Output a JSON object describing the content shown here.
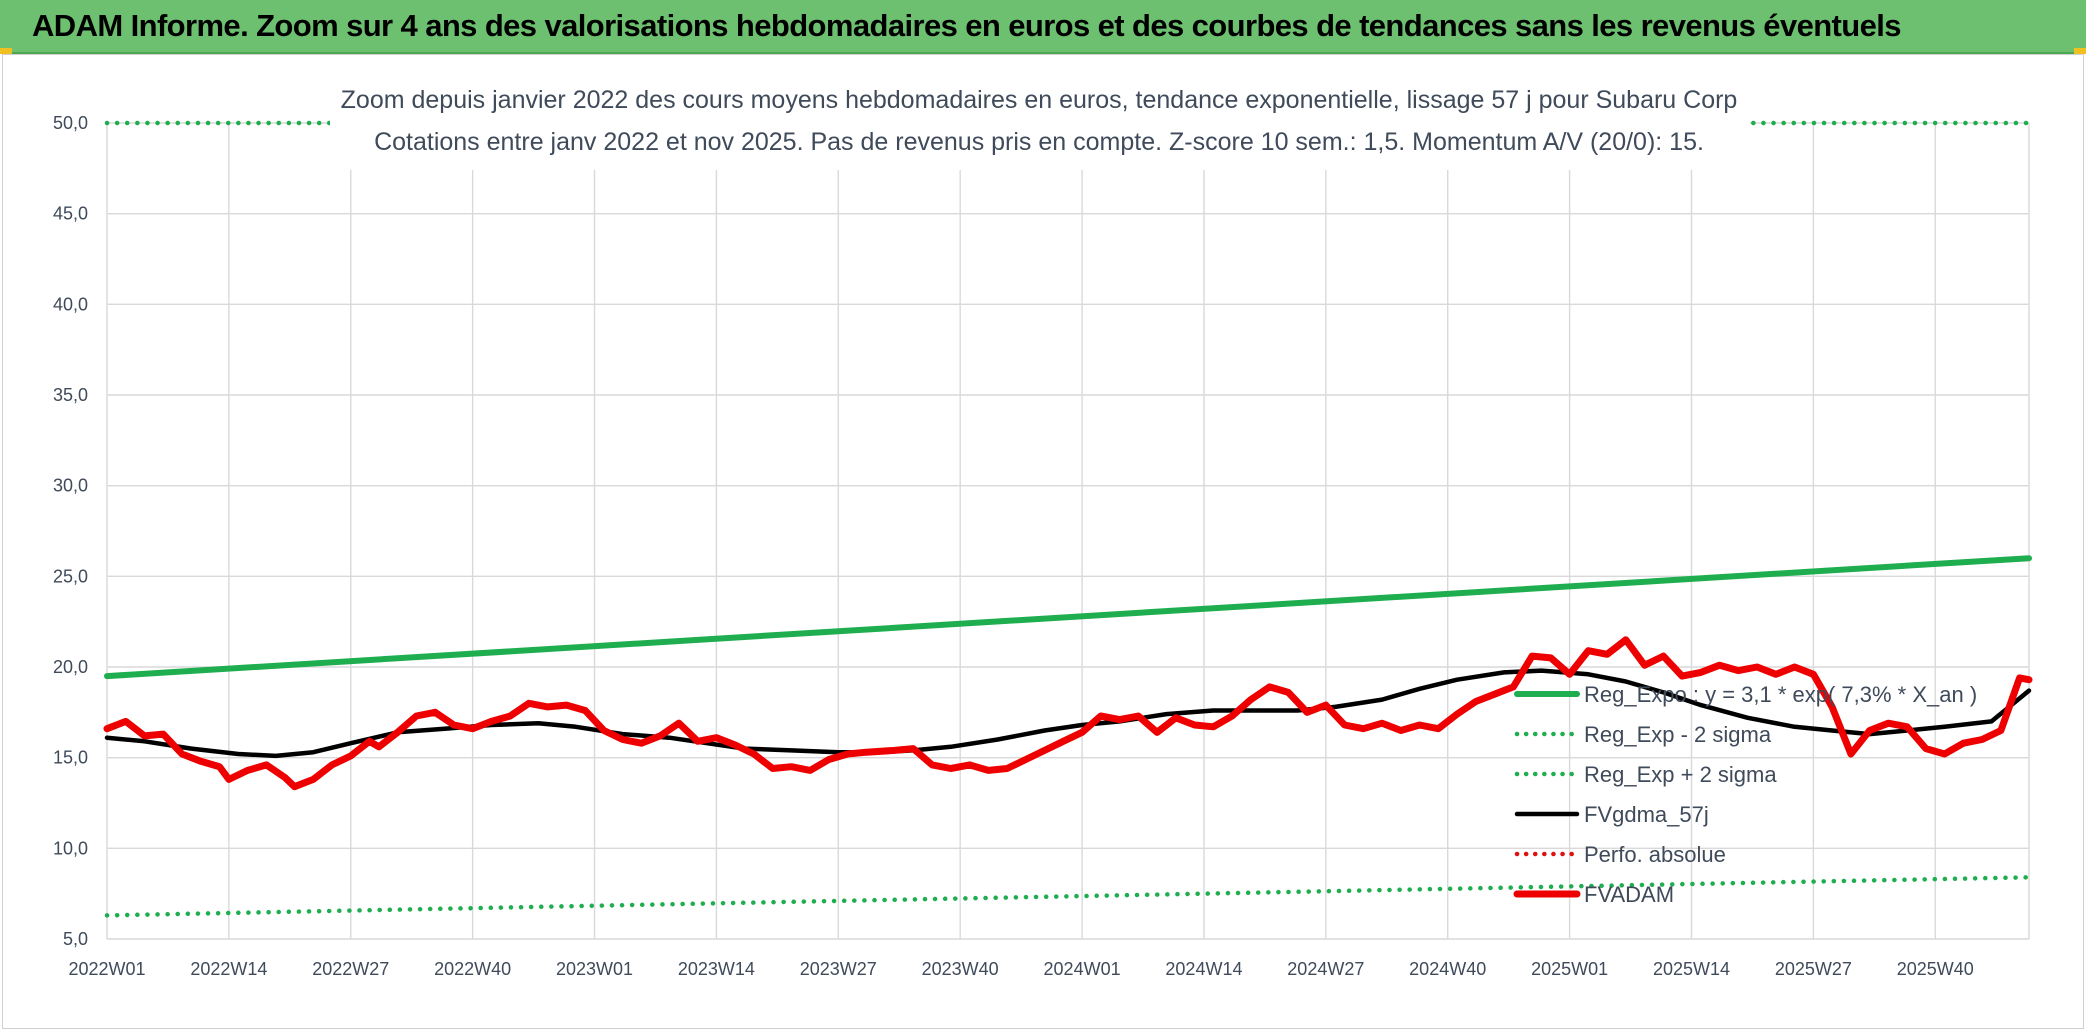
{
  "header": {
    "title": "ADAM Informe. Zoom sur 4 ans des valorisations hebdomadaires en euros et des courbes de tendances sans les revenus éventuels"
  },
  "colors": {
    "header_bg": "#6cc070",
    "regression": "#1fae4f",
    "fvadam": "#ee0000",
    "fvgdma": "#000000",
    "perfo": "#e01010",
    "grid": "#d9d9d9",
    "text": "#3f4a5a"
  },
  "chart_data": {
    "type": "line",
    "title": "Zoom depuis janvier 2022 des cours moyens hebdomadaires en euros, tendance exponentielle, lissage 57 j pour Subaru Corp",
    "subtitle": "Cotations entre janv 2022 et nov 2025. Pas de revenus pris en compte. Z-score 10 sem.: 1,5. Momentum A/V (20/0): 15.",
    "xlabel": "",
    "ylabel": "",
    "ylim": [
      5,
      50
    ],
    "y_ticks": [
      "5,0",
      "10,0",
      "15,0",
      "20,0",
      "25,0",
      "30,0",
      "35,0",
      "40,0",
      "45,0",
      "50,0"
    ],
    "x_ticks": [
      "2022W01",
      "2022W14",
      "2022W27",
      "2022W40",
      "2023W01",
      "2023W14",
      "2023W27",
      "2023W40",
      "2024W01",
      "2024W14",
      "2024W27",
      "2024W40",
      "2025W01",
      "2025W14",
      "2025W27",
      "2025W40"
    ],
    "week_count": 206,
    "grid": true,
    "legend_position": "right",
    "series": [
      {
        "name": "Reg_Expo : y = 3,1 * exp( 7,3% *  X_an )",
        "style": "solid",
        "color": "#1fae4f",
        "points": [
          [
            0,
            19.5
          ],
          [
            205,
            26.0
          ]
        ]
      },
      {
        "name": "Reg_Exp - 2 sigma",
        "style": "dotted",
        "color": "#1fae4f",
        "points": [
          [
            0,
            6.3
          ],
          [
            205,
            8.4
          ]
        ]
      },
      {
        "name": "Reg_Exp + 2 sigma",
        "style": "dotted",
        "color": "#1fae4f",
        "points": [
          [
            0,
            50.0
          ],
          [
            205,
            50.0
          ]
        ]
      },
      {
        "name": "FVgdma_57j",
        "style": "solid",
        "color": "#000000",
        "points": [
          [
            0,
            16.1
          ],
          [
            4,
            15.9
          ],
          [
            9,
            15.5
          ],
          [
            14,
            15.2
          ],
          [
            18,
            15.1
          ],
          [
            22,
            15.3
          ],
          [
            26,
            15.8
          ],
          [
            31,
            16.4
          ],
          [
            36,
            16.6
          ],
          [
            41,
            16.8
          ],
          [
            46,
            16.9
          ],
          [
            50,
            16.7
          ],
          [
            55,
            16.3
          ],
          [
            60,
            16.1
          ],
          [
            64,
            15.8
          ],
          [
            68,
            15.5
          ],
          [
            73,
            15.4
          ],
          [
            78,
            15.3
          ],
          [
            82,
            15.3
          ],
          [
            86,
            15.4
          ],
          [
            90,
            15.6
          ],
          [
            95,
            16.0
          ],
          [
            100,
            16.5
          ],
          [
            104,
            16.8
          ],
          [
            108,
            17.0
          ],
          [
            113,
            17.4
          ],
          [
            118,
            17.6
          ],
          [
            122,
            17.6
          ],
          [
            127,
            17.6
          ],
          [
            131,
            17.8
          ],
          [
            136,
            18.2
          ],
          [
            140,
            18.8
          ],
          [
            144,
            19.3
          ],
          [
            149,
            19.7
          ],
          [
            153,
            19.8
          ],
          [
            158,
            19.6
          ],
          [
            162,
            19.2
          ],
          [
            166,
            18.6
          ],
          [
            170,
            17.9
          ],
          [
            175,
            17.2
          ],
          [
            180,
            16.7
          ],
          [
            184,
            16.5
          ],
          [
            188,
            16.3
          ],
          [
            192,
            16.5
          ],
          [
            196,
            16.7
          ],
          [
            201,
            17.0
          ],
          [
            205,
            18.7
          ]
        ]
      },
      {
        "name": "Perfo. absolue",
        "style": "dotted",
        "color": "#e01010",
        "points": []
      },
      {
        "name": "FVADAM",
        "style": "solid",
        "color": "#ee0000",
        "points": [
          [
            0,
            16.6
          ],
          [
            2,
            17.0
          ],
          [
            4,
            16.2
          ],
          [
            6,
            16.3
          ],
          [
            8,
            15.2
          ],
          [
            10,
            14.8
          ],
          [
            12,
            14.5
          ],
          [
            13,
            13.8
          ],
          [
            15,
            14.3
          ],
          [
            17,
            14.6
          ],
          [
            19,
            13.9
          ],
          [
            20,
            13.4
          ],
          [
            22,
            13.8
          ],
          [
            24,
            14.6
          ],
          [
            26,
            15.1
          ],
          [
            28,
            15.9
          ],
          [
            29,
            15.6
          ],
          [
            31,
            16.4
          ],
          [
            33,
            17.3
          ],
          [
            35,
            17.5
          ],
          [
            37,
            16.8
          ],
          [
            39,
            16.6
          ],
          [
            41,
            17.0
          ],
          [
            43,
            17.3
          ],
          [
            45,
            18.0
          ],
          [
            47,
            17.8
          ],
          [
            49,
            17.9
          ],
          [
            51,
            17.6
          ],
          [
            53,
            16.5
          ],
          [
            55,
            16.0
          ],
          [
            57,
            15.8
          ],
          [
            59,
            16.2
          ],
          [
            61,
            16.9
          ],
          [
            63,
            15.9
          ],
          [
            65,
            16.1
          ],
          [
            67,
            15.7
          ],
          [
            69,
            15.2
          ],
          [
            71,
            14.4
          ],
          [
            73,
            14.5
          ],
          [
            75,
            14.3
          ],
          [
            77,
            14.9
          ],
          [
            79,
            15.2
          ],
          [
            81,
            15.3
          ],
          [
            84,
            15.4
          ],
          [
            86,
            15.5
          ],
          [
            88,
            14.6
          ],
          [
            90,
            14.4
          ],
          [
            92,
            14.6
          ],
          [
            94,
            14.3
          ],
          [
            96,
            14.4
          ],
          [
            98,
            14.9
          ],
          [
            100,
            15.4
          ],
          [
            102,
            15.9
          ],
          [
            104,
            16.4
          ],
          [
            106,
            17.3
          ],
          [
            108,
            17.1
          ],
          [
            110,
            17.3
          ],
          [
            112,
            16.4
          ],
          [
            114,
            17.2
          ],
          [
            116,
            16.8
          ],
          [
            118,
            16.7
          ],
          [
            120,
            17.3
          ],
          [
            122,
            18.2
          ],
          [
            124,
            18.9
          ],
          [
            126,
            18.6
          ],
          [
            128,
            17.5
          ],
          [
            130,
            17.9
          ],
          [
            132,
            16.8
          ],
          [
            134,
            16.6
          ],
          [
            136,
            16.9
          ],
          [
            138,
            16.5
          ],
          [
            140,
            16.8
          ],
          [
            142,
            16.6
          ],
          [
            144,
            17.4
          ],
          [
            146,
            18.1
          ],
          [
            148,
            18.5
          ],
          [
            150,
            18.9
          ],
          [
            152,
            20.6
          ],
          [
            154,
            20.5
          ],
          [
            156,
            19.6
          ],
          [
            158,
            20.9
          ],
          [
            160,
            20.7
          ],
          [
            162,
            21.5
          ],
          [
            164,
            20.1
          ],
          [
            166,
            20.6
          ],
          [
            168,
            19.5
          ],
          [
            170,
            19.7
          ],
          [
            172,
            20.1
          ],
          [
            174,
            19.8
          ],
          [
            176,
            20.0
          ],
          [
            178,
            19.6
          ],
          [
            180,
            20.0
          ],
          [
            182,
            19.6
          ],
          [
            184,
            17.8
          ],
          [
            186,
            15.2
          ],
          [
            188,
            16.5
          ],
          [
            190,
            16.9
          ],
          [
            192,
            16.7
          ],
          [
            194,
            15.5
          ],
          [
            196,
            15.2
          ],
          [
            198,
            15.8
          ],
          [
            200,
            16.0
          ],
          [
            202,
            16.5
          ],
          [
            204,
            19.4
          ],
          [
            205,
            19.3
          ]
        ]
      }
    ]
  }
}
